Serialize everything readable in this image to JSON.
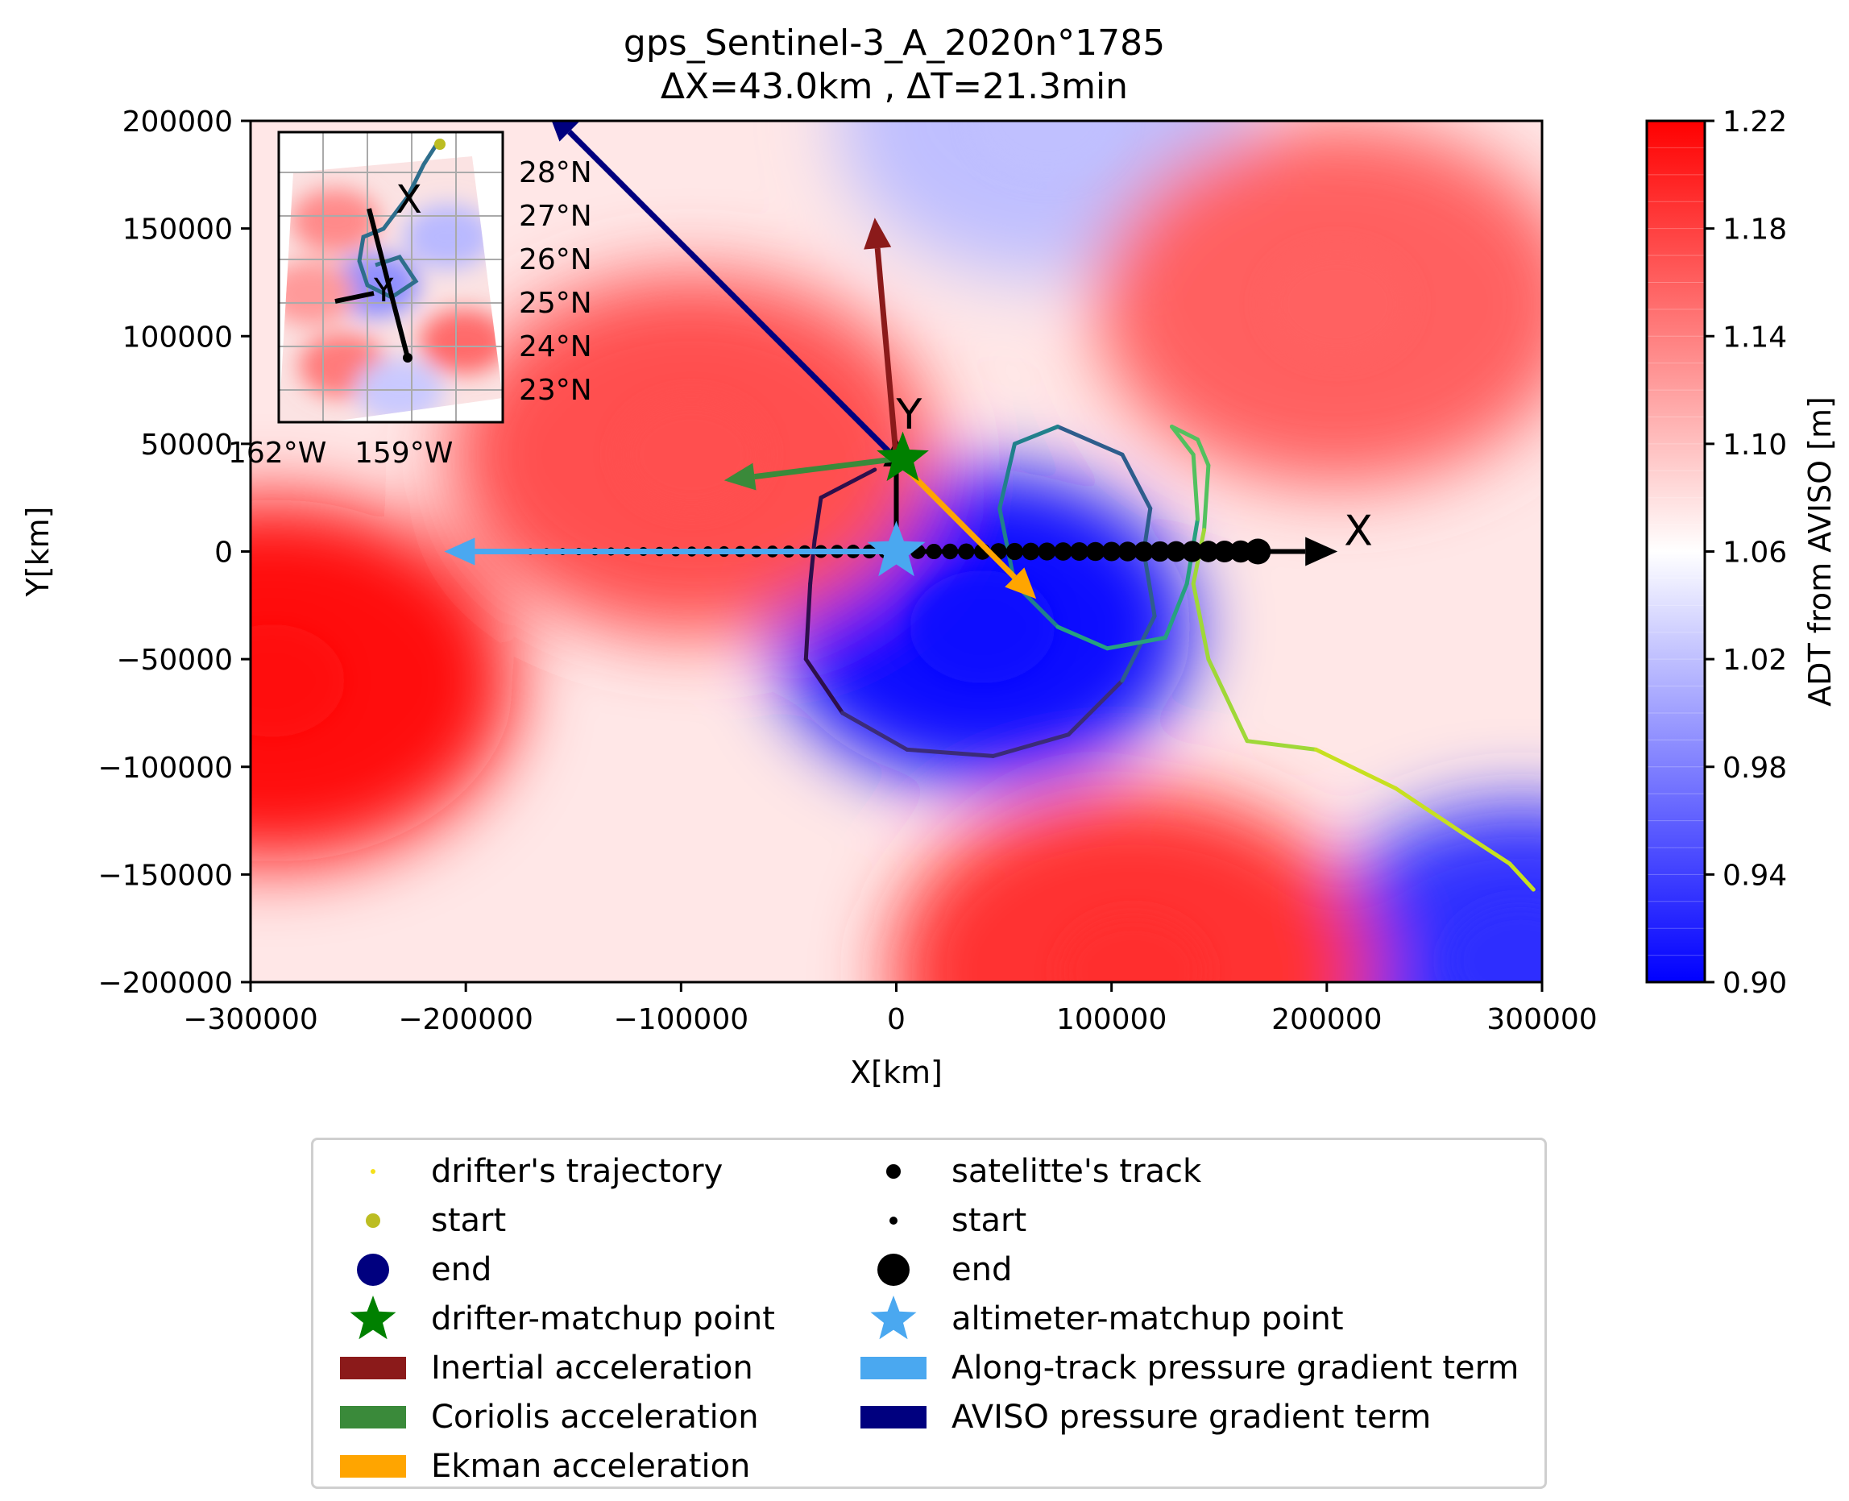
{
  "header": {
    "title_line1": "gps_Sentinel-3_A_2020n°1785",
    "title_line2": "ΔX=43.0km , ΔT=21.3min"
  },
  "chart_data": {
    "type": "contour",
    "xlabel": "X[km]",
    "ylabel": "Y[km]",
    "xlim": [
      -300000,
      300000
    ],
    "ylim": [
      -200000,
      200000
    ],
    "xticks": [
      -300000,
      -200000,
      -100000,
      0,
      100000,
      200000,
      300000
    ],
    "yticks": [
      -200000,
      -150000,
      -100000,
      -50000,
      0,
      50000,
      100000,
      150000,
      200000
    ],
    "xtick_labels": [
      "−300000",
      "−200000",
      "−100000",
      "0",
      "100000",
      "200000",
      "300000"
    ],
    "ytick_labels": [
      "−200000",
      "−150000",
      "−100000",
      "−50000",
      "0",
      "50000",
      "100000",
      "150000",
      "200000"
    ],
    "colorbar": {
      "label": "ADT from AVISO [m]",
      "range": [
        0.9,
        1.22
      ],
      "tick_labels": [
        "0.90",
        "0.94",
        "0.98",
        "1.02",
        "1.06",
        "1.10",
        "1.14",
        "1.18",
        "1.22"
      ],
      "colormap": "bwr"
    },
    "adt_features": [
      {
        "kind": "low",
        "x": 40000,
        "y": -35000,
        "value": 0.91
      },
      {
        "kind": "low",
        "x": 290000,
        "y": -190000,
        "value": 0.93
      },
      {
        "kind": "low",
        "x": 70000,
        "y": 200000,
        "value": 1.02
      },
      {
        "kind": "high",
        "x": -290000,
        "y": -60000,
        "value": 1.21
      },
      {
        "kind": "high",
        "x": -95000,
        "y": 45000,
        "value": 1.17
      },
      {
        "kind": "high",
        "x": 205000,
        "y": 115000,
        "value": 1.16
      },
      {
        "kind": "high",
        "x": 110000,
        "y": -195000,
        "value": 1.19
      }
    ],
    "satellite_track": {
      "y": 0,
      "x_start": -170000,
      "x_end": 168000,
      "point_spacing": 7500
    },
    "drifter_trajectory": [
      {
        "x": -10000,
        "y": 38000
      },
      {
        "x": -35000,
        "y": 25000
      },
      {
        "x": -38000,
        "y": 5000
      },
      {
        "x": -40000,
        "y": -15000
      },
      {
        "x": -42000,
        "y": -50000
      },
      {
        "x": -25000,
        "y": -75000
      },
      {
        "x": 5000,
        "y": -92000
      },
      {
        "x": 45000,
        "y": -95000
      },
      {
        "x": 80000,
        "y": -85000
      },
      {
        "x": 105000,
        "y": -60000
      },
      {
        "x": 120000,
        "y": -30000
      },
      {
        "x": 115000,
        "y": 0
      },
      {
        "x": 118000,
        "y": 20000
      },
      {
        "x": 105000,
        "y": 45000
      },
      {
        "x": 75000,
        "y": 58000
      },
      {
        "x": 55000,
        "y": 50000
      },
      {
        "x": 48000,
        "y": 20000
      },
      {
        "x": 55000,
        "y": -15000
      },
      {
        "x": 75000,
        "y": -35000
      },
      {
        "x": 98000,
        "y": -45000
      },
      {
        "x": 125000,
        "y": -40000
      },
      {
        "x": 135000,
        "y": -15000
      },
      {
        "x": 140000,
        "y": 15000
      },
      {
        "x": 138000,
        "y": 45000
      },
      {
        "x": 128000,
        "y": 58000
      },
      {
        "x": 140000,
        "y": 52000
      },
      {
        "x": 145000,
        "y": 40000
      },
      {
        "x": 143000,
        "y": 10000
      },
      {
        "x": 138000,
        "y": -15000
      },
      {
        "x": 145000,
        "y": -50000
      },
      {
        "x": 163000,
        "y": -88000
      },
      {
        "x": 195000,
        "y": -92000
      },
      {
        "x": 232000,
        "y": -110000
      },
      {
        "x": 262000,
        "y": -130000
      },
      {
        "x": 285000,
        "y": -145000
      },
      {
        "x": 296000,
        "y": -157000
      }
    ],
    "markers": {
      "drifter_matchup": {
        "x": 3000,
        "y": 43000
      },
      "altimeter_matchup": {
        "x": 0,
        "y": 0
      }
    },
    "vectors": [
      {
        "name": "Inertial acceleration",
        "color": "#8b1a1a",
        "x0": 0,
        "y0": 43000,
        "x1": -10000,
        "y1": 155000
      },
      {
        "name": "Coriolis acceleration",
        "color": "#3a8a3a",
        "x0": 0,
        "y0": 43000,
        "x1": -80000,
        "y1": 33000
      },
      {
        "name": "Ekman acceleration",
        "color": "#ffa500",
        "x0": 0,
        "y0": 43000,
        "x1": 65000,
        "y1": -22000
      },
      {
        "name": "AVISO pressure gradient term",
        "color": "#00007f",
        "x0": 0,
        "y0": 43000,
        "x1": -162000,
        "y1": 205000
      },
      {
        "name": "Along-track pressure gradient term",
        "color": "#4aa8f0",
        "x0": 0,
        "y0": 0,
        "x1": -210000,
        "y1": 0
      }
    ],
    "axes_arrows": {
      "x_label": "X",
      "y_label": "Y"
    },
    "inset_map": {
      "lat_labels": [
        "28°N",
        "27°N",
        "26°N",
        "25°N",
        "24°N",
        "23°N"
      ],
      "lon_labels": [
        "162°W",
        "159°W"
      ],
      "axis_labels": [
        "X",
        "Y"
      ]
    }
  },
  "legend": {
    "col1": [
      {
        "label": "drifter's trajectory",
        "symbol": "tiny-dot",
        "color": "#f5e01a"
      },
      {
        "label": "start",
        "symbol": "dot",
        "color": "#bcbd22"
      },
      {
        "label": "end",
        "symbol": "big-dot",
        "color": "#00007f"
      },
      {
        "label": "drifter-matchup point",
        "symbol": "star",
        "color": "#008000"
      },
      {
        "label": "Inertial acceleration",
        "symbol": "patch",
        "color": "#8b1a1a"
      },
      {
        "label": "Coriolis acceleration",
        "symbol": "patch",
        "color": "#3a8a3a"
      },
      {
        "label": "Ekman acceleration",
        "symbol": "patch",
        "color": "#ffa500"
      }
    ],
    "col2": [
      {
        "label": "satelitte's track",
        "symbol": "dot",
        "color": "#000000"
      },
      {
        "label": "start",
        "symbol": "small-dot",
        "color": "#000000"
      },
      {
        "label": "end",
        "symbol": "big-dot",
        "color": "#000000"
      },
      {
        "label": "altimeter-matchup point",
        "symbol": "star",
        "color": "#4aa8f0"
      },
      {
        "label": "Along-track pressure gradient term",
        "symbol": "patch",
        "color": "#4aa8f0"
      },
      {
        "label": "AVISO pressure gradient term",
        "symbol": "patch",
        "color": "#00007f"
      }
    ]
  }
}
